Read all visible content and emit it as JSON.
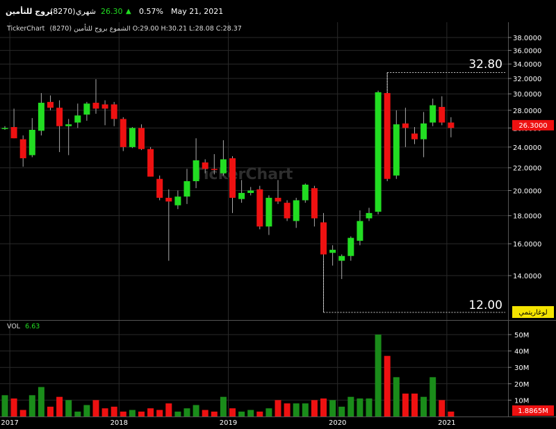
{
  "header": {
    "name": "بروج للتأمين",
    "code": "(8270)",
    "period": "شهري",
    "price": "26.30",
    "change_pct": "0.57%",
    "date": "May 21, 2021"
  },
  "info_line": {
    "brand": "TickerChart",
    "text": "الشموع بروج للتأمين (8270) O:29.00 H:30.21 L:28.08 C:28.37"
  },
  "watermark": "TickerChart",
  "price_panel": {
    "y_ticks": [
      "38.0000",
      "36.0000",
      "34.0000",
      "32.0000",
      "30.0000",
      "28.0000",
      "26.0000",
      "24.0000",
      "22.0000",
      "20.0000",
      "18.0000",
      "16.0000",
      "14.0000"
    ],
    "last_price_label": "26.3000",
    "high_marker": "32.80",
    "low_marker": "12.00",
    "scale_label": "لوغاريتمي"
  },
  "volume_panel": {
    "label": "VOL",
    "value": "6.63",
    "y_ticks": [
      "50M",
      "40M",
      "30M",
      "20M",
      "10M"
    ],
    "last_volume_label": "1.8865M"
  },
  "x_labels": [
    "2017",
    "2018",
    "2019",
    "2020",
    "2021"
  ],
  "colors": {
    "up": "#22dd22",
    "down": "#ee1111",
    "vol_up": "#1a8c1a",
    "vol_down": "#ee1111",
    "change": "#22dd22",
    "grid": "#2a2a2a"
  },
  "chart_data": {
    "type": "candlestick",
    "title": "بروج للتأمين (8270)",
    "interval": "monthly",
    "y_scale": "log",
    "ylim": [
      12.0,
      38.0
    ],
    "volume_ylim": [
      0,
      52
    ],
    "volume_unit": "M",
    "x_labels": [
      "2017",
      "2018",
      "2019",
      "2020",
      "2021"
    ],
    "candles": [
      {
        "date": "2016-12",
        "o": 26.0,
        "h": 26.2,
        "l": 25.8,
        "c": 26.0,
        "v": 13
      },
      {
        "date": "2017-01",
        "o": 26.1,
        "h": 28.2,
        "l": 24.9,
        "c": 24.9,
        "v": 11
      },
      {
        "date": "2017-02",
        "o": 24.8,
        "h": 25.2,
        "l": 22.1,
        "c": 22.9,
        "v": 4
      },
      {
        "date": "2017-03",
        "o": 23.2,
        "h": 27.1,
        "l": 23.0,
        "c": 25.8,
        "v": 13
      },
      {
        "date": "2017-04",
        "o": 25.7,
        "h": 30.1,
        "l": 25.2,
        "c": 28.9,
        "v": 18
      },
      {
        "date": "2017-05",
        "o": 29.0,
        "h": 29.8,
        "l": 28.0,
        "c": 28.3,
        "v": 6
      },
      {
        "date": "2017-06",
        "o": 28.3,
        "h": 29.2,
        "l": 23.5,
        "c": 26.2,
        "v": 12
      },
      {
        "date": "2017-07",
        "o": 26.2,
        "h": 27.0,
        "l": 23.2,
        "c": 26.4,
        "v": 10
      },
      {
        "date": "2017-08",
        "o": 26.6,
        "h": 28.8,
        "l": 26.0,
        "c": 27.4,
        "v": 3
      },
      {
        "date": "2017-09",
        "o": 27.5,
        "h": 29.0,
        "l": 26.8,
        "c": 28.8,
        "v": 7
      },
      {
        "date": "2017-10",
        "o": 28.9,
        "h": 31.9,
        "l": 27.6,
        "c": 28.2,
        "v": 10
      },
      {
        "date": "2017-11",
        "o": 28.7,
        "h": 29.2,
        "l": 26.3,
        "c": 28.2,
        "v": 5
      },
      {
        "date": "2017-12",
        "o": 28.7,
        "h": 29.0,
        "l": 26.2,
        "c": 27.0,
        "v": 6
      },
      {
        "date": "2018-01",
        "o": 27.0,
        "h": 27.2,
        "l": 23.6,
        "c": 24.0,
        "v": 3
      },
      {
        "date": "2018-02",
        "o": 24.0,
        "h": 26.1,
        "l": 23.9,
        "c": 26.0,
        "v": 4
      },
      {
        "date": "2018-03",
        "o": 26.0,
        "h": 26.4,
        "l": 23.7,
        "c": 23.8,
        "v": 3
      },
      {
        "date": "2018-04",
        "o": 23.8,
        "h": 24.0,
        "l": 21.2,
        "c": 21.2,
        "v": 5
      },
      {
        "date": "2018-05",
        "o": 21.0,
        "h": 21.3,
        "l": 19.2,
        "c": 19.4,
        "v": 4
      },
      {
        "date": "2018-06",
        "o": 19.4,
        "h": 20.1,
        "l": 14.9,
        "c": 19.1,
        "v": 8
      },
      {
        "date": "2018-07",
        "o": 18.8,
        "h": 20.0,
        "l": 18.5,
        "c": 19.5,
        "v": 3
      },
      {
        "date": "2018-08",
        "o": 19.5,
        "h": 21.9,
        "l": 18.9,
        "c": 20.8,
        "v": 5
      },
      {
        "date": "2018-09",
        "o": 20.8,
        "h": 24.9,
        "l": 20.2,
        "c": 22.7,
        "v": 7
      },
      {
        "date": "2018-10",
        "o": 22.5,
        "h": 22.8,
        "l": 21.5,
        "c": 21.9,
        "v": 4
      },
      {
        "date": "2018-11",
        "o": 21.9,
        "h": 23.3,
        "l": 21.4,
        "c": 21.8,
        "v": 3
      },
      {
        "date": "2018-12",
        "o": 21.5,
        "h": 24.7,
        "l": 21.3,
        "c": 22.8,
        "v": 12
      },
      {
        "date": "2019-01",
        "o": 22.9,
        "h": 23.1,
        "l": 18.2,
        "c": 19.4,
        "v": 5
      },
      {
        "date": "2019-02",
        "o": 19.3,
        "h": 20.9,
        "l": 19.0,
        "c": 19.8,
        "v": 3
      },
      {
        "date": "2019-03",
        "o": 19.8,
        "h": 20.3,
        "l": 19.6,
        "c": 20.0,
        "v": 4
      },
      {
        "date": "2019-04",
        "o": 20.1,
        "h": 20.4,
        "l": 17.0,
        "c": 17.2,
        "v": 3
      },
      {
        "date": "2019-05",
        "o": 17.2,
        "h": 19.6,
        "l": 16.6,
        "c": 19.4,
        "v": 5
      },
      {
        "date": "2019-06",
        "o": 19.4,
        "h": 20.9,
        "l": 18.9,
        "c": 19.1,
        "v": 10
      },
      {
        "date": "2019-07",
        "o": 19.0,
        "h": 19.2,
        "l": 17.6,
        "c": 17.8,
        "v": 8
      },
      {
        "date": "2019-08",
        "o": 17.6,
        "h": 19.4,
        "l": 17.1,
        "c": 19.2,
        "v": 8
      },
      {
        "date": "2019-09",
        "o": 19.2,
        "h": 20.6,
        "l": 19.0,
        "c": 20.5,
        "v": 8
      },
      {
        "date": "2019-10",
        "o": 20.2,
        "h": 20.4,
        "l": 17.2,
        "c": 17.8,
        "v": 10
      },
      {
        "date": "2019-11",
        "o": 17.5,
        "h": 18.2,
        "l": 12.0,
        "c": 15.3,
        "v": 11
      },
      {
        "date": "2019-12",
        "o": 15.4,
        "h": 15.9,
        "l": 14.6,
        "c": 15.6,
        "v": 10
      },
      {
        "date": "2020-01",
        "o": 14.9,
        "h": 15.3,
        "l": 13.8,
        "c": 15.2,
        "v": 6
      },
      {
        "date": "2020-02",
        "o": 15.2,
        "h": 16.5,
        "l": 14.9,
        "c": 16.4,
        "v": 12
      },
      {
        "date": "2020-03",
        "o": 16.2,
        "h": 18.4,
        "l": 15.9,
        "c": 17.6,
        "v": 11
      },
      {
        "date": "2020-04",
        "o": 17.8,
        "h": 18.6,
        "l": 17.6,
        "c": 18.2,
        "v": 11
      },
      {
        "date": "2020-05",
        "o": 18.3,
        "h": 30.4,
        "l": 18.1,
        "c": 30.2,
        "v": 50
      },
      {
        "date": "2020-06",
        "o": 30.1,
        "h": 32.8,
        "l": 20.8,
        "c": 21.0,
        "v": 37
      },
      {
        "date": "2020-07",
        "o": 21.3,
        "h": 28.0,
        "l": 21.0,
        "c": 26.4,
        "v": 24
      },
      {
        "date": "2020-08",
        "o": 26.5,
        "h": 28.3,
        "l": 24.0,
        "c": 26.0,
        "v": 14
      },
      {
        "date": "2020-09",
        "o": 25.4,
        "h": 26.1,
        "l": 24.3,
        "c": 24.8,
        "v": 14
      },
      {
        "date": "2020-10",
        "o": 24.8,
        "h": 27.8,
        "l": 23.0,
        "c": 26.5,
        "v": 12
      },
      {
        "date": "2020-11",
        "o": 26.6,
        "h": 29.4,
        "l": 26.2,
        "c": 28.6,
        "v": 24
      },
      {
        "date": "2020-12",
        "o": 28.4,
        "h": 29.7,
        "l": 26.3,
        "c": 26.6,
        "v": 10
      },
      {
        "date": "2021-01",
        "o": 26.6,
        "h": 27.2,
        "l": 25.0,
        "c": 26.0,
        "v": 3
      }
    ]
  }
}
